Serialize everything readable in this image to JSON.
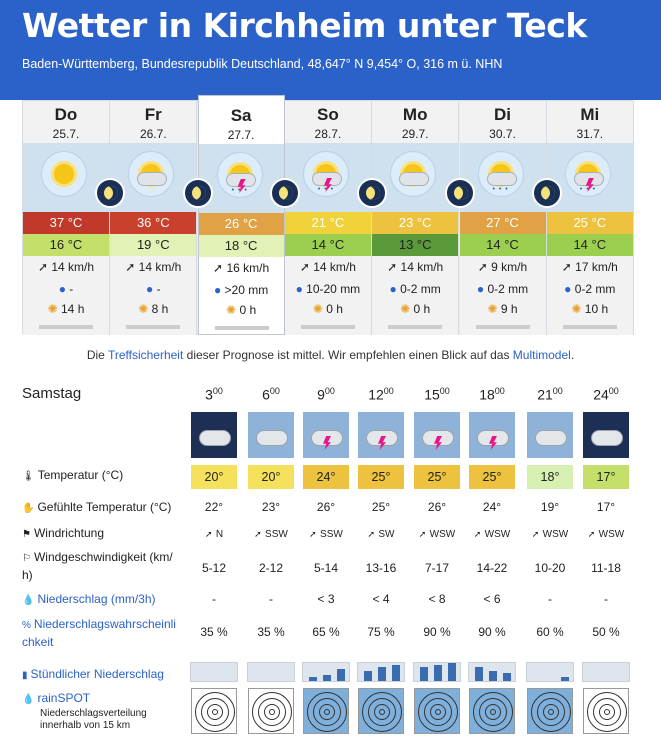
{
  "header": {
    "title": "Wetter in Kirchheim unter Teck",
    "subtitle": "Baden-Württemberg, Bundesrepublik Deutschland, 48,647° N 9,454° O, 316 m ü. NHN"
  },
  "days": [
    {
      "name": "Do",
      "date": "25.7.",
      "tmax": "37 °C",
      "tmin": "16 °C",
      "wind": "14 km/h",
      "rain": "-",
      "sun": "14 h",
      "maxc": "#c0392b",
      "minc": "#c4e06a",
      "icon": "sun"
    },
    {
      "name": "Fr",
      "date": "26.7.",
      "tmax": "36 °C",
      "tmin": "19 °C",
      "wind": "14 km/h",
      "rain": "-",
      "sun": "8 h",
      "maxc": "#c9412c",
      "minc": "#e2f1b5",
      "icon": "sun-cloud"
    },
    {
      "name": "Sa",
      "date": "27.7.",
      "tmax": "26 °C",
      "tmin": "18 °C",
      "wind": "16 km/h",
      "rain": ">20 mm",
      "sun": "0 h",
      "maxc": "#e0a244",
      "minc": "#e2f1b5",
      "icon": "thunder"
    },
    {
      "name": "So",
      "date": "28.7.",
      "tmax": "21 °C",
      "tmin": "14 °C",
      "wind": "14 km/h",
      "rain": "10-20 mm",
      "sun": "0 h",
      "maxc": "#f0d23a",
      "minc": "#9ccf4f",
      "icon": "thunder-rain"
    },
    {
      "name": "Mo",
      "date": "29.7.",
      "tmax": "23 °C",
      "tmin": "13 °C",
      "wind": "14 km/h",
      "rain": "0-2 mm",
      "sun": "0 h",
      "maxc": "#ecc23e",
      "minc": "#5a9a3a",
      "icon": "cloud"
    },
    {
      "name": "Di",
      "date": "30.7.",
      "tmax": "27 °C",
      "tmin": "14 °C",
      "wind": "9 km/h",
      "rain": "0-2 mm",
      "sun": "9 h",
      "maxc": "#e0a244",
      "minc": "#9ccf4f",
      "icon": "sun-rain"
    },
    {
      "name": "Mi",
      "date": "31.7.",
      "tmax": "25 °C",
      "tmin": "14 °C",
      "wind": "17 km/h",
      "rain": "0-2 mm",
      "sun": "10 h",
      "maxc": "#ecc23e",
      "minc": "#9ccf4f",
      "icon": "thunder"
    }
  ],
  "note": {
    "pre": "Die ",
    "link1": "Treffsicherheit",
    "mid": " dieser Prognose ist mittel. Wir empfehlen einen Blick auf das ",
    "link2": "Multimodel",
    "post": "."
  },
  "detail": {
    "day_label": "Samstag",
    "hours": [
      "3",
      "6",
      "9",
      "12",
      "15",
      "18",
      "21",
      "24"
    ],
    "hour_sup": "00",
    "labels": {
      "temp": "Temperatur (°C)",
      "feel": "Gefühlte Temperatur (°C)",
      "dir": "Windrichtung",
      "speed1": "Windgeschwindigkeit (km/",
      "speed2": "h)",
      "rain": "Niederschlag (mm/3h)",
      "prob1": "Niederschlagswahrscheinli",
      "prob2": "chkeit",
      "hourly": "Stündlicher Niederschlag",
      "rainspot": "rainSPOT",
      "rainspot_sub1": "Niederschlagsverteilung",
      "rainspot_sub2": "innerhalb von 15 km"
    },
    "temps": [
      "20°",
      "20°",
      "24°",
      "25°",
      "25°",
      "25°",
      "18°",
      "17°"
    ],
    "temp_colors": [
      "#f6e15c",
      "#f6e15c",
      "#ecc23e",
      "#ecc23e",
      "#ecc23e",
      "#ecc23e",
      "#d7efb0",
      "#c4e06a"
    ],
    "feels": [
      "22°",
      "23°",
      "26°",
      "25°",
      "26°",
      "24°",
      "19°",
      "17°"
    ],
    "dirs": [
      "N",
      "SSW",
      "SSW",
      "SW",
      "WSW",
      "WSW",
      "WSW",
      "WSW"
    ],
    "speeds": [
      "5-12",
      "2-12",
      "5-14",
      "13-16",
      "7-17",
      "14-22",
      "10-20",
      "11-18"
    ],
    "rains": [
      "-",
      "-",
      "< 3",
      "< 4",
      "< 8",
      "< 6",
      "-",
      "-"
    ],
    "probs": [
      "35 %",
      "35 %",
      "65 %",
      "75 %",
      "90 %",
      "90 %",
      "60 %",
      "50 %"
    ]
  }
}
